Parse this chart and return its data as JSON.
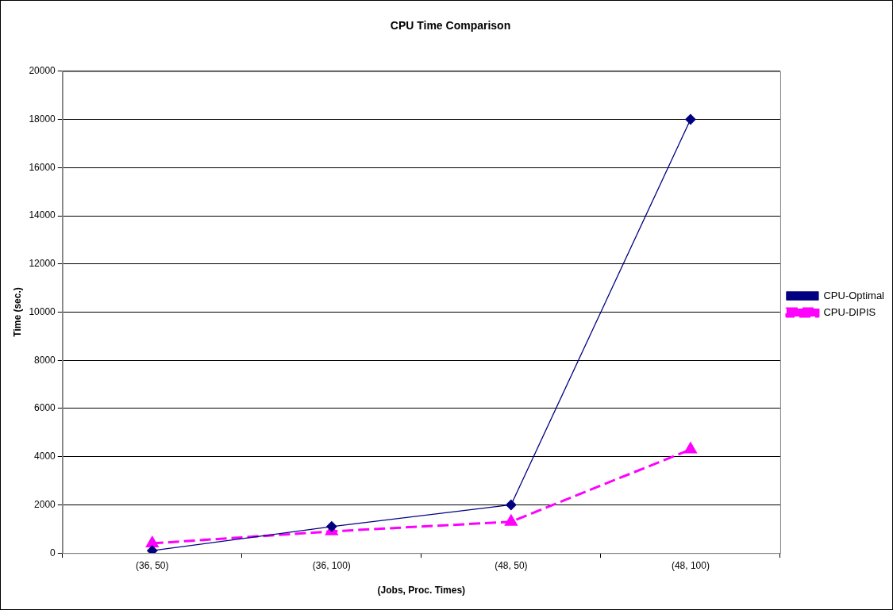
{
  "chart_data": {
    "type": "line",
    "title": "CPU Time Comparison",
    "xlabel": "(Jobs, Proc. Times)",
    "ylabel": "Time (sec.)",
    "categories": [
      "(36, 50)",
      "(36, 100)",
      "(48, 50)",
      "(48, 100)"
    ],
    "series": [
      {
        "name": "CPU-Optimal",
        "color": "#000080",
        "values": [
          100,
          1100,
          2000,
          18000
        ],
        "marker": "diamond",
        "line_style": "solid"
      },
      {
        "name": "CPU-DIPIS",
        "color": "#ff00ff",
        "values": [
          400,
          900,
          1300,
          4300
        ],
        "marker": "triangle",
        "line_style": "dashed"
      }
    ],
    "ylim": [
      0,
      20000
    ],
    "yticks": [
      0,
      2000,
      4000,
      6000,
      8000,
      10000,
      12000,
      14000,
      16000,
      18000,
      20000
    ],
    "grid": "y",
    "legend": "right"
  }
}
